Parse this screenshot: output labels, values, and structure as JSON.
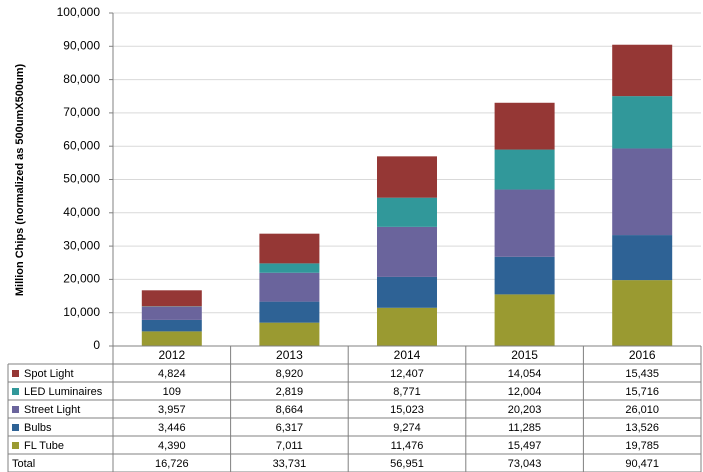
{
  "chart_data": {
    "type": "bar",
    "stacked": true,
    "categories": [
      "2012",
      "2013",
      "2014",
      "2015",
      "2016"
    ],
    "ylabel": "Million Chips  (normalized as 500umX500um)",
    "ylim": [
      0,
      100000
    ],
    "yticks": [
      "0",
      "10,000",
      "20,000",
      "30,000",
      "40,000",
      "50,000",
      "60,000",
      "70,000",
      "80,000",
      "90,000",
      "100,000"
    ],
    "grid": true,
    "legend": "table-rows",
    "series": [
      {
        "name": "Spot Light",
        "color": "#953735",
        "values": [
          4824,
          8920,
          12407,
          14054,
          15435
        ],
        "labels": [
          "4,824",
          "8,920",
          "12,407",
          "14,054",
          "15,435"
        ]
      },
      {
        "name": "LED Luminaires",
        "color": "#31989a",
        "values": [
          109,
          2819,
          8771,
          12004,
          15716
        ],
        "labels": [
          "109",
          "2,819",
          "8,771",
          "12,004",
          "15,716"
        ]
      },
      {
        "name": "Street Light",
        "color": "#6a649c",
        "values": [
          3957,
          8664,
          15023,
          20203,
          26010
        ],
        "labels": [
          "3,957",
          "8,664",
          "15,023",
          "20,203",
          "26,010"
        ]
      },
      {
        "name": "Bulbs",
        "color": "#2e6295",
        "values": [
          3446,
          6317,
          9274,
          11285,
          13526
        ],
        "labels": [
          "3,446",
          "6,317",
          "9,274",
          "11,285",
          "13,526"
        ]
      },
      {
        "name": "FL Tube",
        "color": "#9a9a31",
        "values": [
          4390,
          7011,
          11476,
          15497,
          19785
        ],
        "labels": [
          "4,390",
          "7,011",
          "11,476",
          "15,497",
          "19,785"
        ]
      }
    ],
    "total": {
      "name": "Total",
      "labels": [
        "16,726",
        "33,731",
        "56,951",
        "73,043",
        "90,471"
      ]
    }
  }
}
